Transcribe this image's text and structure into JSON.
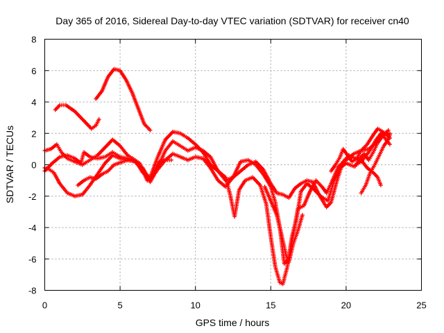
{
  "chart_data": {
    "type": "scatter",
    "title": "Day 365 of 2016, Sidereal Day-to-day VTEC variation (SDTVAR) for receiver cn40",
    "xlabel": "GPS time / hours",
    "ylabel": "SDTVAR / TECUs",
    "xlim": [
      0,
      25
    ],
    "ylim": [
      -8,
      8
    ],
    "xticks": [
      "0",
      "5",
      "10",
      "15",
      "20",
      "25"
    ],
    "yticks": [
      "8",
      "6",
      "4",
      "2",
      "0",
      "-2",
      "-4",
      "-6",
      "-8"
    ],
    "grid": true,
    "marker": "+",
    "marker_color": "#ff0000",
    "series": [
      {
        "points": [
          [
            0.7,
            3.5
          ],
          [
            1.0,
            3.8
          ],
          [
            1.4,
            3.8
          ],
          [
            2.0,
            3.4
          ],
          [
            2.6,
            2.8
          ],
          [
            3.1,
            2.3
          ],
          [
            3.4,
            2.5
          ],
          [
            3.6,
            2.9
          ]
        ]
      },
      {
        "points": [
          [
            3.4,
            4.2
          ],
          [
            3.8,
            4.7
          ],
          [
            4.2,
            5.6
          ],
          [
            4.6,
            6.1
          ],
          [
            5.0,
            6.0
          ],
          [
            5.4,
            5.4
          ],
          [
            5.8,
            4.6
          ],
          [
            6.2,
            3.6
          ],
          [
            6.6,
            2.6
          ],
          [
            7.0,
            2.2
          ]
        ]
      },
      {
        "points": [
          [
            0.0,
            0.9
          ],
          [
            0.4,
            1.0
          ],
          [
            0.8,
            1.3
          ],
          [
            1.1,
            0.8
          ],
          [
            1.5,
            0.4
          ],
          [
            2.0,
            0.2
          ],
          [
            2.5,
            0.0
          ],
          [
            3.0,
            0.3
          ],
          [
            3.5,
            0.6
          ],
          [
            4.0,
            1.1
          ],
          [
            4.5,
            1.6
          ],
          [
            5.0,
            1.2
          ],
          [
            5.5,
            0.6
          ],
          [
            6.0,
            0.3
          ],
          [
            6.5,
            -0.5
          ],
          [
            7.0,
            -0.8
          ],
          [
            7.5,
            0.5
          ],
          [
            8.0,
            1.6
          ],
          [
            8.5,
            2.1
          ],
          [
            9.0,
            2.0
          ],
          [
            9.5,
            1.7
          ],
          [
            10.0,
            1.3
          ],
          [
            10.5,
            0.8
          ],
          [
            11.0,
            0.0
          ],
          [
            11.5,
            -0.4
          ],
          [
            12.0,
            -0.8
          ],
          [
            12.3,
            -1.9
          ],
          [
            12.6,
            -3.3
          ],
          [
            12.9,
            -1.6
          ],
          [
            13.3,
            -1.0
          ],
          [
            13.8,
            -0.8
          ],
          [
            14.3,
            -1.3
          ],
          [
            14.7,
            -2.5
          ],
          [
            15.0,
            -4.6
          ],
          [
            15.3,
            -6.5
          ],
          [
            15.6,
            -7.5
          ],
          [
            15.8,
            -7.6
          ],
          [
            16.1,
            -6.5
          ],
          [
            16.4,
            -4.6
          ],
          [
            16.7,
            -3.5
          ],
          [
            17.0,
            -1.7
          ],
          [
            17.4,
            -1.2
          ],
          [
            17.8,
            -1.5
          ],
          [
            18.3,
            -2.0
          ],
          [
            18.8,
            -2.3
          ],
          [
            19.2,
            -1.0
          ],
          [
            19.6,
            -0.2
          ],
          [
            20.0,
            0.1
          ],
          [
            20.5,
            -0.1
          ],
          [
            21.0,
            0.2
          ],
          [
            21.5,
            0.8
          ],
          [
            22.0,
            1.6
          ],
          [
            22.4,
            2.1
          ],
          [
            22.9,
            1.9
          ]
        ]
      },
      {
        "points": [
          [
            0.0,
            -0.4
          ],
          [
            0.5,
            0.1
          ],
          [
            1.0,
            0.5
          ],
          [
            1.5,
            0.6
          ],
          [
            2.0,
            0.4
          ],
          [
            2.4,
            0.1
          ],
          [
            2.6,
            0.8
          ],
          [
            3.0,
            0.5
          ],
          [
            3.5,
            0.4
          ],
          [
            4.0,
            0.5
          ],
          [
            4.5,
            0.8
          ],
          [
            5.0,
            0.5
          ],
          [
            5.5,
            0.4
          ],
          [
            6.0,
            0.2
          ],
          [
            6.5,
            -0.4
          ],
          [
            7.0,
            -1.1
          ],
          [
            7.5,
            -0.2
          ],
          [
            8.0,
            0.9
          ],
          [
            8.5,
            1.5
          ],
          [
            9.0,
            1.2
          ],
          [
            9.5,
            0.9
          ],
          [
            10.0,
            1.1
          ],
          [
            10.5,
            0.9
          ],
          [
            11.0,
            0.5
          ],
          [
            11.5,
            -0.4
          ],
          [
            12.0,
            -1.0
          ],
          [
            12.5,
            -0.8
          ],
          [
            13.0,
            -0.4
          ],
          [
            13.5,
            0.0
          ],
          [
            14.0,
            0.2
          ],
          [
            14.5,
            -0.3
          ],
          [
            15.0,
            -1.2
          ],
          [
            15.4,
            -1.8
          ],
          [
            15.8,
            -1.9
          ],
          [
            16.2,
            -2.1
          ],
          [
            16.6,
            -1.5
          ],
          [
            17.0,
            -1.2
          ],
          [
            17.4,
            -1.0
          ],
          [
            17.8,
            -1.1
          ],
          [
            18.2,
            -1.9
          ],
          [
            18.7,
            -2.7
          ],
          [
            19.0,
            -2.4
          ],
          [
            19.4,
            -1.0
          ],
          [
            19.8,
            0.2
          ],
          [
            20.2,
            0.6
          ],
          [
            20.6,
            0.4
          ],
          [
            21.0,
            0.3
          ],
          [
            21.4,
            -0.2
          ],
          [
            21.8,
            -0.5
          ],
          [
            22.1,
            -0.8
          ],
          [
            22.3,
            -1.3
          ]
        ]
      },
      {
        "points": [
          [
            0.0,
            -0.2
          ],
          [
            0.3,
            -0.3
          ],
          [
            0.6,
            -0.5
          ],
          [
            1.0,
            -1.2
          ],
          [
            1.5,
            -1.8
          ],
          [
            2.0,
            -2.0
          ],
          [
            2.5,
            -1.9
          ],
          [
            3.0,
            -1.3
          ],
          [
            3.5,
            -0.6
          ],
          [
            4.0,
            0.1
          ],
          [
            4.5,
            0.6
          ],
          [
            5.0,
            0.4
          ],
          [
            5.5,
            0.3
          ],
          [
            6.0,
            0.2
          ],
          [
            6.5,
            -0.2
          ],
          [
            7.0,
            -1.0
          ],
          [
            7.5,
            -0.3
          ],
          [
            8.0,
            0.3
          ],
          [
            8.5,
            0.7
          ],
          [
            9.0,
            0.5
          ],
          [
            9.5,
            0.3
          ],
          [
            10.0,
            0.5
          ],
          [
            10.5,
            0.4
          ],
          [
            11.0,
            -0.2
          ],
          [
            11.5,
            -1.0
          ],
          [
            12.0,
            -1.4
          ],
          [
            12.5,
            -0.8
          ],
          [
            13.0,
            0.2
          ],
          [
            13.5,
            0.3
          ],
          [
            14.0,
            0.0
          ],
          [
            14.5,
            -0.6
          ],
          [
            15.0,
            -1.4
          ],
          [
            15.3,
            -2.4
          ],
          [
            15.6,
            -4.0
          ],
          [
            15.9,
            -6.3
          ],
          [
            16.2,
            -6.0
          ],
          [
            16.5,
            -4.4
          ],
          [
            16.8,
            -2.8
          ],
          [
            17.2,
            -2.6
          ],
          [
            17.6,
            -1.7
          ],
          [
            18.0,
            -1.0
          ],
          [
            18.4,
            -1.4
          ],
          [
            18.7,
            -1.8
          ],
          [
            19.0,
            -1.2
          ],
          [
            19.5,
            -0.1
          ],
          [
            20.0,
            0.3
          ],
          [
            20.5,
            0.7
          ],
          [
            21.0,
            0.9
          ],
          [
            21.5,
            1.0
          ],
          [
            22.0,
            1.4
          ],
          [
            22.4,
            1.9
          ],
          [
            22.9,
            1.3
          ]
        ]
      },
      {
        "points": [
          [
            2.2,
            -1.3
          ],
          [
            2.6,
            -1.0
          ],
          [
            3.0,
            -0.8
          ],
          [
            3.4,
            -0.9
          ],
          [
            3.8,
            -0.6
          ],
          [
            4.2,
            -0.4
          ],
          [
            4.6,
            0.0
          ],
          [
            5.2,
            0.2
          ],
          [
            5.8,
            0.4
          ],
          [
            6.3,
            0.1
          ],
          [
            6.8,
            -1.0
          ],
          [
            7.2,
            -0.6
          ],
          [
            7.6,
            0.2
          ],
          [
            8.0,
            0.3
          ],
          [
            8.4,
            0.3
          ]
        ]
      },
      {
        "points": [
          [
            14.6,
            -1.4
          ],
          [
            15.0,
            -2.3
          ],
          [
            15.4,
            -3.2
          ],
          [
            15.7,
            -4.4
          ],
          [
            16.0,
            -5.7
          ],
          [
            16.2,
            -6.2
          ],
          [
            16.5,
            -5.0
          ],
          [
            16.8,
            -4.2
          ],
          [
            17.1,
            -3.2
          ]
        ]
      },
      {
        "points": [
          [
            21.0,
            -1.8
          ],
          [
            21.3,
            -1.3
          ],
          [
            21.6,
            -0.5
          ],
          [
            21.9,
            0.0
          ],
          [
            22.2,
            0.6
          ],
          [
            22.5,
            1.2
          ],
          [
            22.8,
            1.6
          ],
          [
            22.9,
            2.0
          ]
        ]
      },
      {
        "points": [
          [
            20.6,
            -0.1
          ],
          [
            20.9,
            0.4
          ],
          [
            21.2,
            0.7
          ],
          [
            21.5,
            0.3
          ],
          [
            21.8,
            0.8
          ],
          [
            22.1,
            1.4
          ],
          [
            22.4,
            1.8
          ],
          [
            22.8,
            2.2
          ]
        ]
      },
      {
        "points": [
          [
            19.0,
            -0.4
          ],
          [
            19.3,
            0.0
          ],
          [
            19.6,
            0.5
          ],
          [
            19.8,
            1.0
          ],
          [
            20.1,
            0.6
          ],
          [
            20.4,
            0.2
          ],
          [
            20.7,
            0.4
          ],
          [
            21.0,
            0.9
          ],
          [
            21.4,
            1.3
          ],
          [
            21.8,
            1.9
          ],
          [
            22.1,
            2.3
          ],
          [
            22.6,
            2.0
          ],
          [
            22.9,
            1.7
          ]
        ]
      }
    ]
  }
}
